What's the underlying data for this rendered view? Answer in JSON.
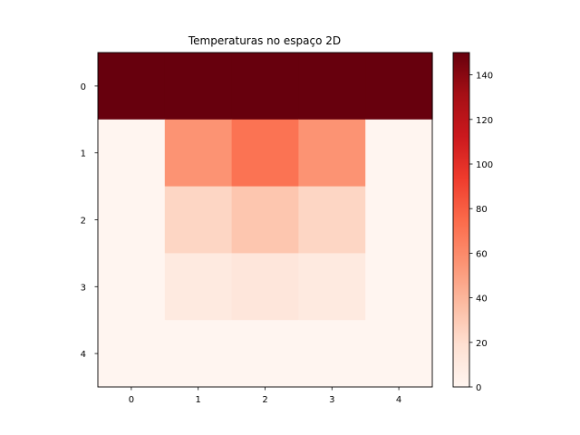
{
  "chart_data": {
    "type": "heatmap",
    "title": "Temperaturas no espaço 2D",
    "xlabel": "",
    "ylabel": "",
    "x_ticks": [
      "0",
      "1",
      "2",
      "3",
      "4"
    ],
    "y_ticks": [
      "0",
      "1",
      "2",
      "3",
      "4"
    ],
    "values": [
      [
        150,
        150,
        150,
        150,
        150
      ],
      [
        0,
        56,
        71,
        56,
        0
      ],
      [
        0,
        24,
        32,
        24,
        0
      ],
      [
        0,
        10,
        13,
        10,
        0
      ],
      [
        0,
        0,
        0,
        0,
        0
      ]
    ],
    "colormap": "Reds",
    "vmin": 0,
    "vmax": 150,
    "colorbar_ticks": [
      "0",
      "20",
      "40",
      "60",
      "80",
      "100",
      "120",
      "140"
    ],
    "colorbar_position": "right",
    "grid": false
  }
}
